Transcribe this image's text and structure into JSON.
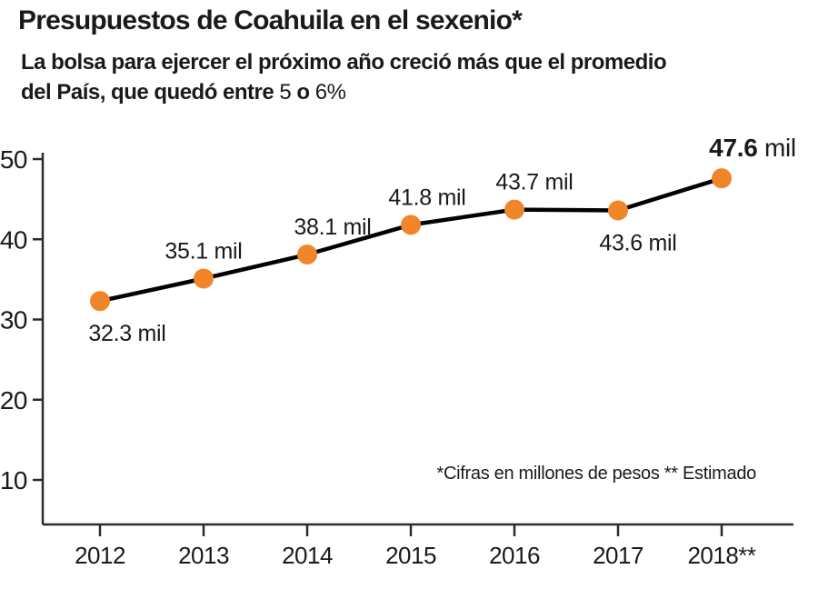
{
  "header": {
    "title": "Presupuestos de Coahuila en el sexenio*",
    "subtitle_line1": "La bolsa para ejercer el próximo año creció más que el promedio",
    "subtitle_line2_prefix": "del País, que quedó entre ",
    "subtitle_num1": "5",
    "subtitle_mid": " o ",
    "subtitle_num2": "6%"
  },
  "chart_data": {
    "type": "line",
    "title": "Presupuestos de Coahuila en el sexenio*",
    "categories": [
      "2012",
      "2013",
      "2014",
      "2015",
      "2016",
      "2017",
      "2018**"
    ],
    "values": [
      32.3,
      35.1,
      38.1,
      41.8,
      43.7,
      43.6,
      47.6
    ],
    "data_labels": [
      "32.3 mil",
      "35.1 mil",
      "38.1 mil",
      "41.8 mil",
      "43.7 mil",
      "43.6 mil",
      "47.6 mil"
    ],
    "label_sides": [
      "below",
      "above",
      "above",
      "above",
      "above",
      "below",
      "above"
    ],
    "label_dx": [
      30,
      0,
      28,
      18,
      22,
      22,
      34
    ],
    "emphasized_label_index": 6,
    "y_ticks": [
      10,
      20,
      30,
      40,
      50
    ],
    "ylim": [
      4.5,
      53
    ],
    "xlabel": "",
    "ylabel": "",
    "grid": false,
    "legend": "none",
    "footnote": "*Cifras en millones de pesos ** Estimado",
    "colors": {
      "line": "#000000",
      "point": "#F08629",
      "axis": "#2B2B2B",
      "text": "#1A1A1A"
    }
  }
}
